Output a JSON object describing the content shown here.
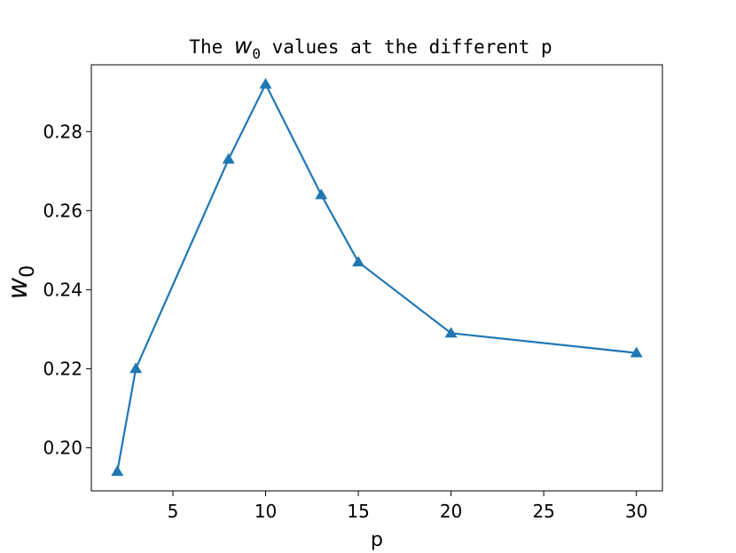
{
  "chart_data": {
    "type": "line",
    "title": {
      "prefix": "The ",
      "symbol": "w",
      "subscript": "0",
      "suffix": " values at the different p"
    },
    "xlabel": "p",
    "ylabel": {
      "symbol": "w",
      "subscript": "0"
    },
    "x": [
      2,
      3,
      8,
      10,
      13,
      15,
      20,
      30
    ],
    "series": [
      {
        "name": "w0",
        "color": "#1f77b4",
        "values": [
          0.194,
          0.22,
          0.273,
          0.292,
          0.264,
          0.247,
          0.229,
          0.224
        ]
      }
    ],
    "xlim": [
      0.6,
      31.4
    ],
    "xticks": [
      5,
      10,
      15,
      20,
      25,
      30
    ],
    "ylim": [
      0.1891,
      0.2969
    ],
    "yticks": [
      {
        "value": 0.2,
        "label": "0.20"
      },
      {
        "value": 0.22,
        "label": "0.22"
      },
      {
        "value": 0.24,
        "label": "0.24"
      },
      {
        "value": 0.26,
        "label": "0.26"
      },
      {
        "value": 0.28,
        "label": "0.28"
      }
    ],
    "grid": false,
    "marker": "triangle"
  }
}
